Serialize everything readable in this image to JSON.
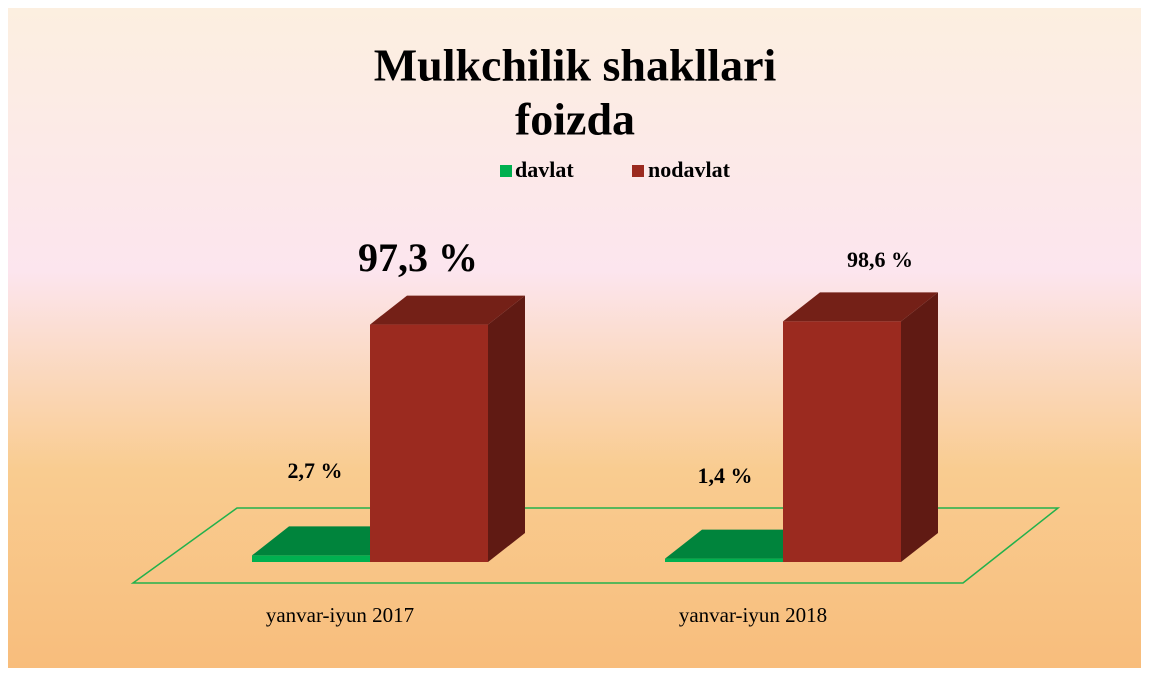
{
  "chart_data": {
    "type": "bar3d",
    "title": [
      "Mulkchilik shakllari",
      "foizda"
    ],
    "categories": [
      "yanvar-iyun 2017",
      "yanvar-iyun 2018"
    ],
    "series": [
      {
        "name": "davlat",
        "color": "#00b050",
        "values": [
          2.7,
          1.4
        ],
        "value_labels": [
          "2,7 %",
          "1,4 %"
        ]
      },
      {
        "name": "nodavlat",
        "color": "#9b2a1f",
        "values": [
          97.3,
          98.6
        ],
        "value_labels": [
          "97,3 %",
          "98,6 %"
        ]
      }
    ],
    "legend": "top"
  }
}
